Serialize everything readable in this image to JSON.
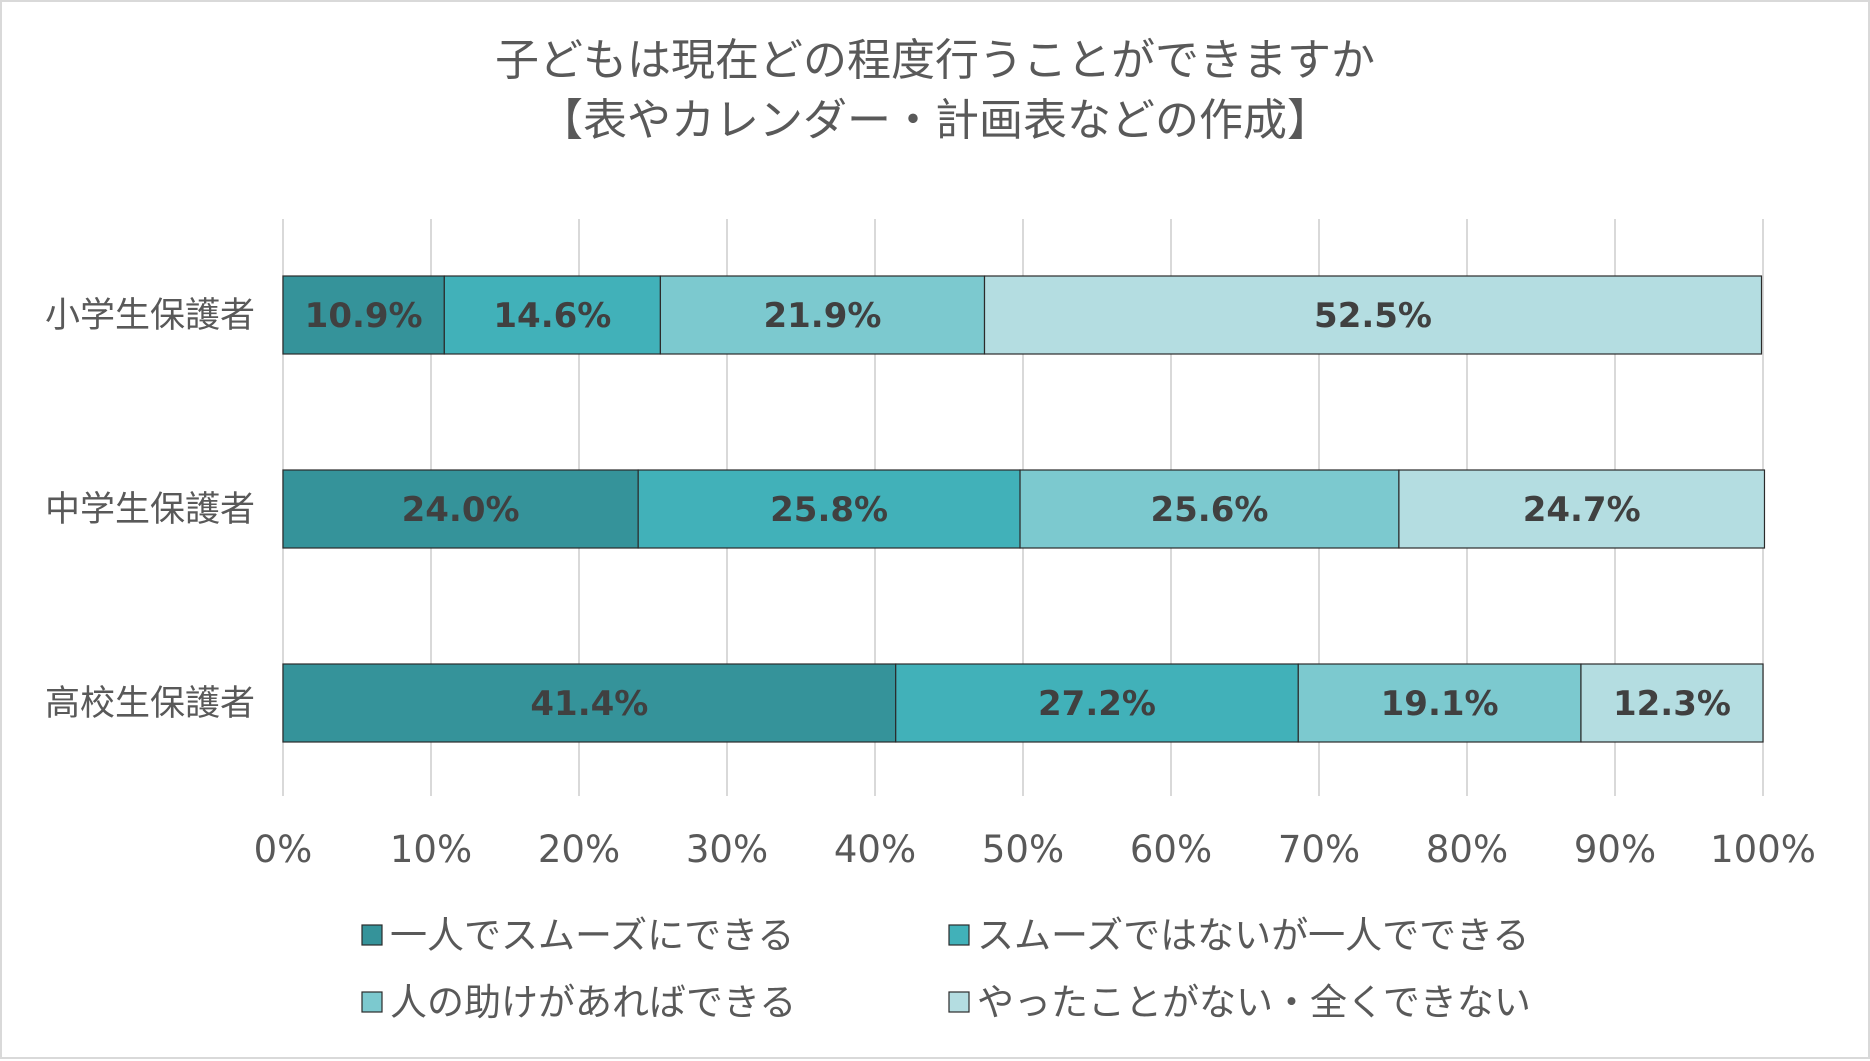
{
  "chart_data": {
    "type": "bar",
    "orientation": "horizontal",
    "stacked": true,
    "title": [
      "子どもは現在どの程度行うことができますか",
      "【表やカレンダー・計画表などの作成】"
    ],
    "categories": [
      "小学生保護者",
      "中学生保護者",
      "高校生保護者"
    ],
    "series": [
      {
        "name": "一人でスムーズにできる",
        "color": "#35939a",
        "values": [
          10.9,
          24.0,
          41.4
        ],
        "labels": [
          "10.9%",
          "24.0%",
          "41.4%"
        ]
      },
      {
        "name": "スムーズではないが一人でできる",
        "color": "#41b1b9",
        "values": [
          14.6,
          25.8,
          27.2
        ],
        "labels": [
          "14.6%",
          "25.8%",
          "27.2%"
        ]
      },
      {
        "name": "人の助けがあればできる",
        "color": "#7cc9cf",
        "values": [
          21.9,
          25.6,
          19.1
        ],
        "labels": [
          "21.9%",
          "25.6%",
          "19.1%"
        ]
      },
      {
        "name": "やったことがない・全くできない",
        "color": "#b4dde1",
        "values": [
          52.5,
          24.7,
          12.3
        ],
        "labels": [
          "52.5%",
          "24.7%",
          "12.3%"
        ]
      }
    ],
    "xlim": [
      0,
      100
    ],
    "xticks": [
      0,
      10,
      20,
      30,
      40,
      50,
      60,
      70,
      80,
      90,
      100
    ],
    "xtick_labels": [
      "0%",
      "10%",
      "20%",
      "30%",
      "40%",
      "50%",
      "60%",
      "70%",
      "80%",
      "90%",
      "100%"
    ],
    "grid": true,
    "legend_position": "bottom"
  }
}
